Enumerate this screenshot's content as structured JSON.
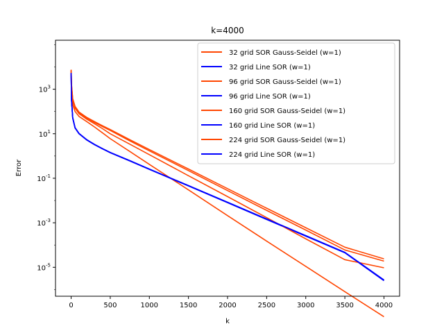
{
  "chart_data": {
    "type": "line",
    "title": "k=4000",
    "xlabel": "k",
    "ylabel": "Error",
    "xlim": [
      -200,
      4200
    ],
    "ylim_log10": [
      -6.3,
      5.2
    ],
    "yscale": "log",
    "grid": false,
    "legend_position": "top-right",
    "x_ticks": [
      0,
      500,
      1000,
      1500,
      2000,
      2500,
      3000,
      3500,
      4000
    ],
    "y_tick_exponents": [
      3,
      1,
      -1,
      -3,
      -5
    ],
    "y_tick_base": "10",
    "series": [
      {
        "name": "32 grid SOR Gauss-Seidel (w=1)",
        "color": "#ff4500",
        "points": [
          [
            0,
            6500
          ],
          [
            5,
            800
          ],
          [
            20,
            200
          ],
          [
            50,
            100
          ],
          [
            100,
            60
          ],
          [
            200,
            35
          ],
          [
            300,
            20
          ],
          [
            400,
            11
          ],
          [
            500,
            6
          ],
          [
            750,
            1.6
          ],
          [
            1000,
            0.42
          ],
          [
            1500,
            0.03
          ],
          [
            2000,
            0.0021
          ],
          [
            2500,
            0.00015
          ],
          [
            3000,
            1.1e-05
          ],
          [
            3500,
            8e-07
          ],
          [
            4000,
            6e-08
          ]
        ]
      },
      {
        "name": "32 grid Line SOR (w=1)",
        "color": "#0000ff",
        "points": [
          [
            0,
            5000
          ],
          [
            5,
            300
          ],
          [
            20,
            50
          ],
          [
            50,
            18
          ],
          [
            100,
            10
          ],
          [
            200,
            5.2
          ],
          [
            300,
            3.2
          ],
          [
            400,
            2.1
          ],
          [
            500,
            1.4
          ],
          [
            750,
            0.6
          ],
          [
            1000,
            0.25
          ],
          [
            1500,
            0.045
          ],
          [
            2000,
            0.008
          ],
          [
            2500,
            0.0014
          ],
          [
            3000,
            0.00025
          ],
          [
            3500,
            4.5e-05
          ],
          [
            4000,
            2.5e-06
          ]
        ]
      },
      {
        "name": "96 grid SOR Gauss-Seidel (w=1)",
        "color": "#ff4500",
        "points": [
          [
            0,
            7000
          ],
          [
            5,
            1300
          ],
          [
            20,
            300
          ],
          [
            50,
            140
          ],
          [
            100,
            80
          ],
          [
            200,
            45
          ],
          [
            300,
            28
          ],
          [
            400,
            17
          ],
          [
            500,
            10
          ],
          [
            750,
            3.4
          ],
          [
            1000,
            1.15
          ],
          [
            1500,
            0.13
          ],
          [
            2000,
            0.015
          ],
          [
            2500,
            0.0017
          ],
          [
            3000,
            0.00019
          ],
          [
            3500,
            2.2e-05
          ],
          [
            4000,
            9.5e-06
          ]
        ]
      },
      {
        "name": "96 grid Line SOR (w=1)",
        "color": "#0000ff",
        "points": [
          [
            0,
            5200
          ],
          [
            5,
            320
          ],
          [
            20,
            52
          ],
          [
            50,
            18.5
          ],
          [
            100,
            10.2
          ],
          [
            200,
            5.3
          ],
          [
            300,
            3.25
          ],
          [
            400,
            2.12
          ],
          [
            500,
            1.42
          ],
          [
            750,
            0.61
          ],
          [
            1000,
            0.255
          ],
          [
            1500,
            0.046
          ],
          [
            2000,
            0.0082
          ],
          [
            2500,
            0.00145
          ],
          [
            3000,
            0.00026
          ],
          [
            3500,
            4.6e-05
          ],
          [
            4000,
            2.6e-06
          ]
        ]
      },
      {
        "name": "160 grid SOR Gauss-Seidel (w=1)",
        "color": "#ff4500",
        "points": [
          [
            0,
            7300
          ],
          [
            5,
            1500
          ],
          [
            20,
            350
          ],
          [
            50,
            160
          ],
          [
            100,
            90
          ],
          [
            200,
            50
          ],
          [
            300,
            32
          ],
          [
            400,
            21
          ],
          [
            500,
            14
          ],
          [
            750,
            4.8
          ],
          [
            1000,
            1.7
          ],
          [
            1500,
            0.22
          ],
          [
            2000,
            0.028
          ],
          [
            2500,
            0.0036
          ],
          [
            3000,
            0.00047
          ],
          [
            3500,
            6e-05
          ],
          [
            4000,
            1.9e-05
          ]
        ]
      },
      {
        "name": "160 grid Line SOR (w=1)",
        "color": "#0000ff",
        "points": [
          [
            0,
            5300
          ],
          [
            5,
            325
          ],
          [
            20,
            53
          ],
          [
            50,
            18.7
          ],
          [
            100,
            10.3
          ],
          [
            200,
            5.35
          ],
          [
            300,
            3.28
          ],
          [
            400,
            2.14
          ],
          [
            500,
            1.43
          ],
          [
            750,
            0.615
          ],
          [
            1000,
            0.257
          ],
          [
            1500,
            0.0465
          ],
          [
            2000,
            0.0083
          ],
          [
            2500,
            0.00147
          ],
          [
            3000,
            0.000262
          ],
          [
            3500,
            4.65e-05
          ],
          [
            4000,
            2.65e-06
          ]
        ]
      },
      {
        "name": "224 grid SOR Gauss-Seidel (w=1)",
        "color": "#ff4500",
        "points": [
          [
            0,
            7500
          ],
          [
            5,
            1600
          ],
          [
            20,
            380
          ],
          [
            50,
            170
          ],
          [
            100,
            95
          ],
          [
            200,
            54
          ],
          [
            300,
            35
          ],
          [
            400,
            23
          ],
          [
            500,
            15.5
          ],
          [
            750,
            5.4
          ],
          [
            1000,
            1.95
          ],
          [
            1500,
            0.26
          ],
          [
            2000,
            0.034
          ],
          [
            2500,
            0.0045
          ],
          [
            3000,
            0.0006
          ],
          [
            3500,
            8e-05
          ],
          [
            4000,
            2.4e-05
          ]
        ]
      },
      {
        "name": "224 grid Line SOR (w=1)",
        "color": "#0000ff",
        "points": [
          [
            0,
            5400
          ],
          [
            5,
            330
          ],
          [
            20,
            54
          ],
          [
            50,
            18.9
          ],
          [
            100,
            10.4
          ],
          [
            200,
            5.4
          ],
          [
            300,
            3.3
          ],
          [
            400,
            2.15
          ],
          [
            500,
            1.44
          ],
          [
            750,
            0.62
          ],
          [
            1000,
            0.258
          ],
          [
            1500,
            0.047
          ],
          [
            2000,
            0.0084
          ],
          [
            2500,
            0.00148
          ],
          [
            3000,
            0.000264
          ],
          [
            3500,
            4.7e-05
          ],
          [
            4000,
            2.7e-06
          ]
        ]
      }
    ]
  }
}
